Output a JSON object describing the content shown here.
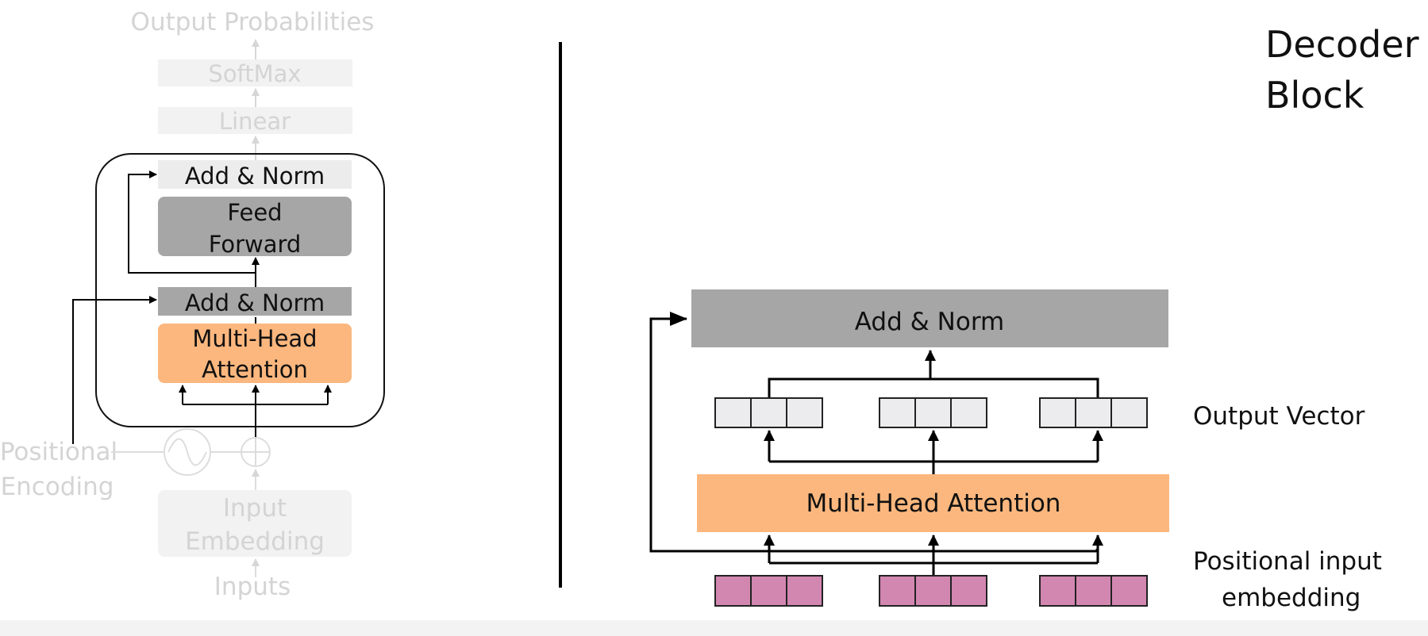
{
  "title": {
    "line1": "Decoder",
    "line2": "Block"
  },
  "left_panel": {
    "output_probabilities": "Output Probabilities",
    "softmax": "SoftMax",
    "linear": "Linear",
    "add_norm_top": "Add & Norm",
    "feed_forward_line1": "Feed",
    "feed_forward_line2": "Forward",
    "add_norm_bottom": "Add & Norm",
    "mha_line1": "Multi-Head",
    "mha_line2": "Attention",
    "positional_line1": "Positional",
    "positional_line2": "Encoding",
    "input_embedding_line1": "Input",
    "input_embedding_line2": "Embedding",
    "inputs": "Inputs"
  },
  "right_panel": {
    "add_norm": "Add & Norm",
    "multi_head_attention": "Multi-Head Attention",
    "output_vector_label": "Output Vector",
    "positional_label_line1": "Positional input",
    "positional_label_line2": "embedding"
  },
  "colors": {
    "orange": "#fbb77e",
    "gray_dark": "#a6a6a6",
    "gray_light": "#ececec",
    "output_cell": "#ececee",
    "embedding_cell": "#d287b1",
    "faded_text": "#d4d4d4",
    "line": "#000000"
  }
}
